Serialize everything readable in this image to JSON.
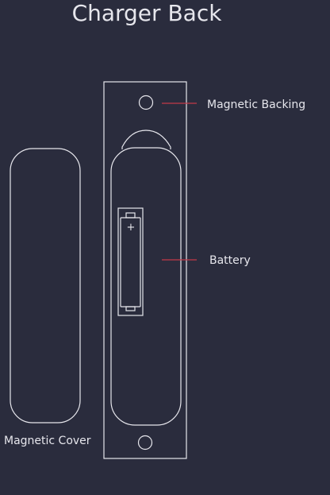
{
  "title": "Charger Back",
  "labels": {
    "magnetic_backing": "Magnetic Backing",
    "battery": "Battery",
    "magnetic_cover": "Magnetic Cover"
  },
  "battery_terminal_symbol": "+",
  "colors": {
    "background": "#2a2c3d",
    "line": "#e6e6ec",
    "leader": "#c23a4a"
  }
}
